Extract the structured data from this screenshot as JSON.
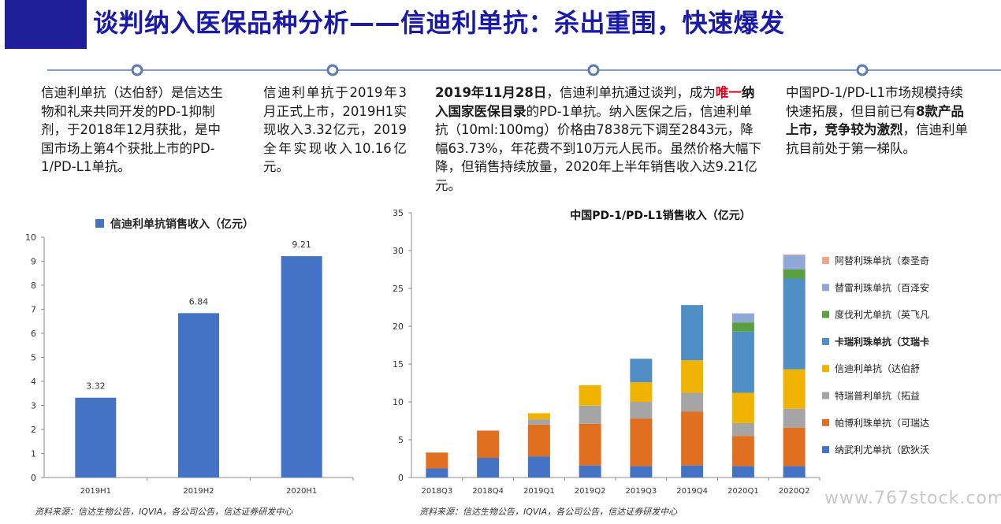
{
  "header": {
    "title": "谈判纳入医保品种分析——信迪利单抗：杀出重围，快速爆发"
  },
  "colors": {
    "header_bar": "#1f1f9a",
    "title": "#1a1aa8",
    "timeline": "#5b7bb0",
    "highlight": "#e0001b"
  },
  "columns": {
    "c1": {
      "text": "信迪利单抗（达伯舒）是信达生物和礼来共同开发的PD-1抑制剂，于2018年12月获批，是中国市场上第4个获批上市的PD-1/PD-L1单抗。"
    },
    "c2": {
      "text": "信迪利单抗于2019年3月正式上市，2019H1实现收入3.32亿元，2019全年实现收入10.16亿元。"
    },
    "c3": {
      "bold1": "2019年11月28日",
      "t1": "，信迪利单抗通过谈判，成为",
      "red": "唯一",
      "bold2": "纳入国家医保目录",
      "t2": "的PD-1单抗。纳入医保之后，信迪利单抗（10ml:100mg）价格由7838元下调至2843元，降幅63.73%，年花费不到10万元人民币。虽然价格大幅下降，但销售持续放量，2020年上半年销售收入达9.21亿元。"
    },
    "c4": {
      "t1": "中国PD-1/PD-L1市场规模持续快速拓展，但目前已有",
      "bold": "8款产品上市，竞争较为激烈",
      "t2": "，信迪利单抗目前处于第一梯队。"
    }
  },
  "chart_data": [
    {
      "type": "bar",
      "title": "信迪利单抗销售收入（亿元）",
      "categories": [
        "2019H1",
        "2019H2",
        "2020H1"
      ],
      "series": [
        {
          "name": "信迪利单抗销售收入（亿元）",
          "values": [
            3.32,
            6.84,
            9.21
          ],
          "color": "#4472c4"
        }
      ],
      "data_labels": [
        "3.32",
        "6.84",
        "9.21"
      ],
      "ylim": [
        0,
        10
      ],
      "yticks": [
        0,
        1,
        2,
        3,
        4,
        5,
        6,
        7,
        8,
        9,
        10
      ],
      "grid": false,
      "legend": "top"
    },
    {
      "type": "bar",
      "stacked": true,
      "title": "中国PD-1/PD-L1销售收入（亿元）",
      "categories": [
        "2018Q3",
        "2018Q4",
        "2019Q1",
        "2019Q2",
        "2019Q3",
        "2019Q4",
        "2020Q1",
        "2020Q2"
      ],
      "series": [
        {
          "name": "纳武利尤单抗（欧狄沃",
          "color": "#4472c4",
          "values": [
            1.2,
            2.6,
            2.8,
            1.6,
            1.5,
            1.6,
            1.5,
            1.5
          ]
        },
        {
          "name": "帕博利珠单抗（可瑞达",
          "color": "#e07020",
          "values": [
            2.1,
            3.6,
            4.2,
            5.5,
            6.3,
            7.1,
            4.0,
            5.1
          ]
        },
        {
          "name": "特瑞普利单抗（拓益",
          "color": "#a5a5a5",
          "values": [
            0,
            0,
            0.7,
            2.4,
            2.2,
            2.5,
            1.7,
            2.5
          ]
        },
        {
          "name": "信迪利单抗（达伯舒",
          "color": "#f0b400",
          "values": [
            0,
            0,
            0.8,
            2.7,
            2.6,
            4.3,
            4.0,
            5.2
          ]
        },
        {
          "name": "卡瑞利珠单抗（艾瑞卡",
          "color": "#4f8fc6",
          "values": [
            0,
            0,
            0,
            0,
            3.1,
            7.3,
            8.1,
            12.0
          ]
        },
        {
          "name": "度伐利尤单抗（英飞凡",
          "color": "#5aa040",
          "values": [
            0,
            0,
            0,
            0,
            0,
            0,
            1.2,
            1.2
          ]
        },
        {
          "name": "替雷利珠单抗（百泽安",
          "color": "#8fa8d8",
          "values": [
            0,
            0,
            0,
            0,
            0,
            0,
            1.2,
            1.9
          ]
        },
        {
          "name": "阿替利珠单抗（泰圣奇",
          "color": "#f4a58a",
          "values": [
            0,
            0,
            0,
            0,
            0,
            0,
            0,
            0.1
          ]
        }
      ],
      "legend_order": [
        "阿替利珠单抗（泰圣奇",
        "替雷利珠单抗（百泽安",
        "度伐利尤单抗（英飞凡",
        "卡瑞利珠单抗（艾瑞卡",
        "信迪利单抗（达伯舒",
        "特瑞普利单抗（拓益",
        "帕博利珠单抗（可瑞达",
        "纳武利尤单抗（欧狄沃"
      ],
      "ylim": [
        0,
        35
      ],
      "yticks": [
        0,
        5,
        10,
        15,
        20,
        25,
        30,
        35
      ],
      "grid": false,
      "legend": "right"
    }
  ],
  "sources": {
    "left": "资料来源：信达生物公告，IQVIA，各公司公告，信达证券研发中心",
    "right": "资料来源：信达生物公告，IQVIA，各公司公告，信达证券研发中心"
  },
  "watermark": "www.767stock.com"
}
